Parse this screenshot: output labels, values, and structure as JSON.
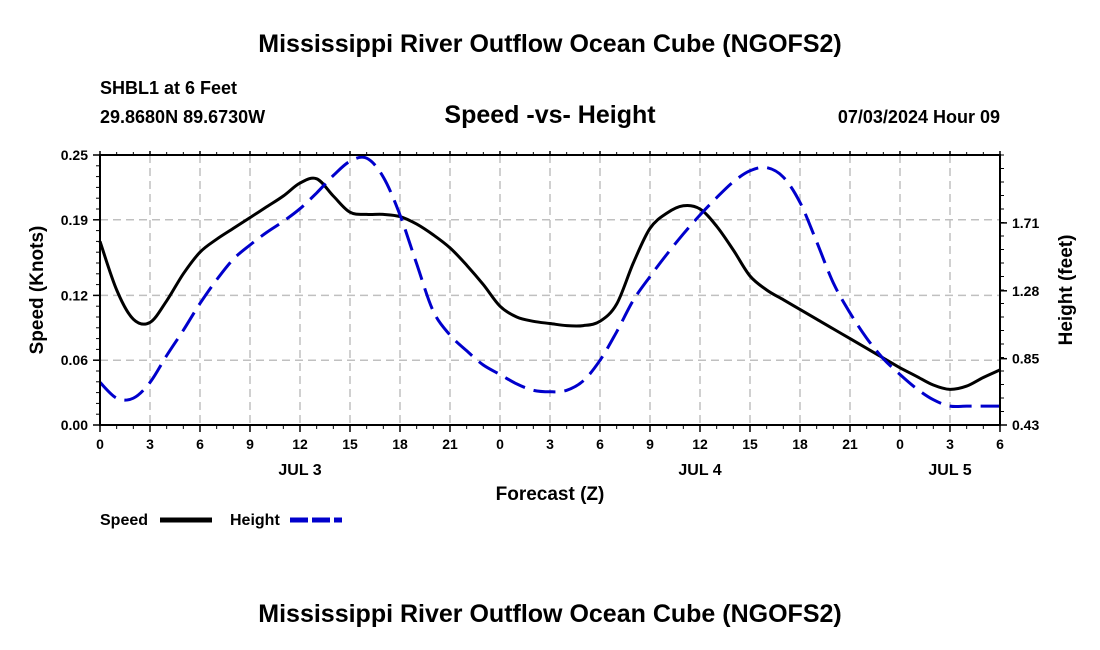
{
  "header": {
    "title": "Mississippi River Outflow Ocean Cube (NGOFS2)",
    "station": "SHBL1 at 6 Feet",
    "coordinates": "29.8680N  89.6730W",
    "datetime": "07/03/2024 Hour 09"
  },
  "footer": {
    "title": "Mississippi River Outflow Ocean Cube (NGOFS2)"
  },
  "colors": {
    "speed": "#000000",
    "height": "#0000cc",
    "grid": "#c0c0c0"
  },
  "chart_data": {
    "type": "line",
    "title": "Speed -vs- Height",
    "xlabel": "Forecast (Z)",
    "ylabel": "Speed (Knots)",
    "y2label": "Height (feet)",
    "xlim": [
      0,
      54
    ],
    "ylim": [
      0,
      0.25
    ],
    "y2lim": [
      0.43,
      2.14
    ],
    "x_ticks": [
      0,
      3,
      6,
      9,
      12,
      15,
      18,
      21,
      24,
      27,
      30,
      33,
      36,
      39,
      42,
      45,
      48,
      51,
      54
    ],
    "x_tick_labels": [
      "0",
      "3",
      "6",
      "9",
      "12",
      "15",
      "18",
      "21",
      "0",
      "3",
      "6",
      "9",
      "12",
      "15",
      "18",
      "21",
      "0",
      "3",
      "6"
    ],
    "y_ticks": [
      0.0,
      0.06,
      0.12,
      0.19,
      0.25
    ],
    "y_tick_labels": [
      "0.00",
      "0.06",
      "0.12",
      "0.19",
      "0.25"
    ],
    "y2_ticks": [
      0.43,
      0.85,
      1.28,
      1.71
    ],
    "y2_tick_labels": [
      "0.43",
      "0.85",
      "1.28",
      "1.71"
    ],
    "day_labels": [
      {
        "x": 12,
        "label": "JUL 3"
      },
      {
        "x": 36,
        "label": "JUL 4"
      },
      {
        "x": 51,
        "label": "JUL 5"
      }
    ],
    "grid": true,
    "legend": [
      {
        "name": "Speed",
        "style": "solid"
      },
      {
        "name": "Height",
        "style": "dashed"
      }
    ],
    "series": [
      {
        "name": "Speed",
        "axis": "left",
        "x": [
          0,
          1,
          2,
          3,
          4,
          5,
          6,
          7,
          8,
          9,
          10,
          11,
          12,
          13,
          14,
          15,
          16,
          17,
          18,
          19,
          20,
          21,
          22,
          23,
          24,
          25,
          26,
          27,
          28,
          29,
          30,
          31,
          32,
          33,
          34,
          35,
          36,
          37,
          38,
          39,
          40,
          41,
          42,
          43,
          44,
          45,
          46,
          47,
          48,
          49,
          50,
          51,
          52,
          53,
          54
        ],
        "values": [
          0.17,
          0.125,
          0.098,
          0.095,
          0.115,
          0.14,
          0.16,
          0.172,
          0.182,
          0.192,
          0.202,
          0.212,
          0.224,
          0.228,
          0.212,
          0.197,
          0.195,
          0.195,
          0.193,
          0.186,
          0.176,
          0.164,
          0.148,
          0.13,
          0.11,
          0.1,
          0.096,
          0.094,
          0.092,
          0.092,
          0.096,
          0.112,
          0.15,
          0.182,
          0.196,
          0.203,
          0.2,
          0.184,
          0.162,
          0.138,
          0.125,
          0.116,
          0.107,
          0.098,
          0.089,
          0.08,
          0.071,
          0.062,
          0.053,
          0.045,
          0.037,
          0.033,
          0.036,
          0.044,
          0.051
        ]
      },
      {
        "name": "Height",
        "axis": "right",
        "x": [
          0,
          1,
          2,
          3,
          4,
          5,
          6,
          7,
          8,
          9,
          10,
          11,
          12,
          13,
          14,
          15,
          16,
          17,
          18,
          19,
          20,
          21,
          22,
          23,
          24,
          25,
          26,
          27,
          28,
          29,
          30,
          31,
          32,
          33,
          34,
          35,
          36,
          37,
          38,
          39,
          40,
          41,
          42,
          43,
          44,
          45,
          46,
          47,
          48,
          49,
          50,
          51,
          52,
          53,
          54
        ],
        "values": [
          0.7,
          0.6,
          0.6,
          0.7,
          0.87,
          1.03,
          1.2,
          1.35,
          1.48,
          1.57,
          1.65,
          1.72,
          1.8,
          1.9,
          2.01,
          2.1,
          2.12,
          2.0,
          1.76,
          1.45,
          1.15,
          1.0,
          0.9,
          0.81,
          0.75,
          0.69,
          0.65,
          0.64,
          0.65,
          0.71,
          0.84,
          1.02,
          1.22,
          1.37,
          1.51,
          1.64,
          1.76,
          1.87,
          1.97,
          2.04,
          2.06,
          2.0,
          1.84,
          1.59,
          1.33,
          1.14,
          0.98,
          0.85,
          0.75,
          0.66,
          0.59,
          0.55,
          0.55,
          0.55,
          0.55
        ]
      }
    ]
  }
}
